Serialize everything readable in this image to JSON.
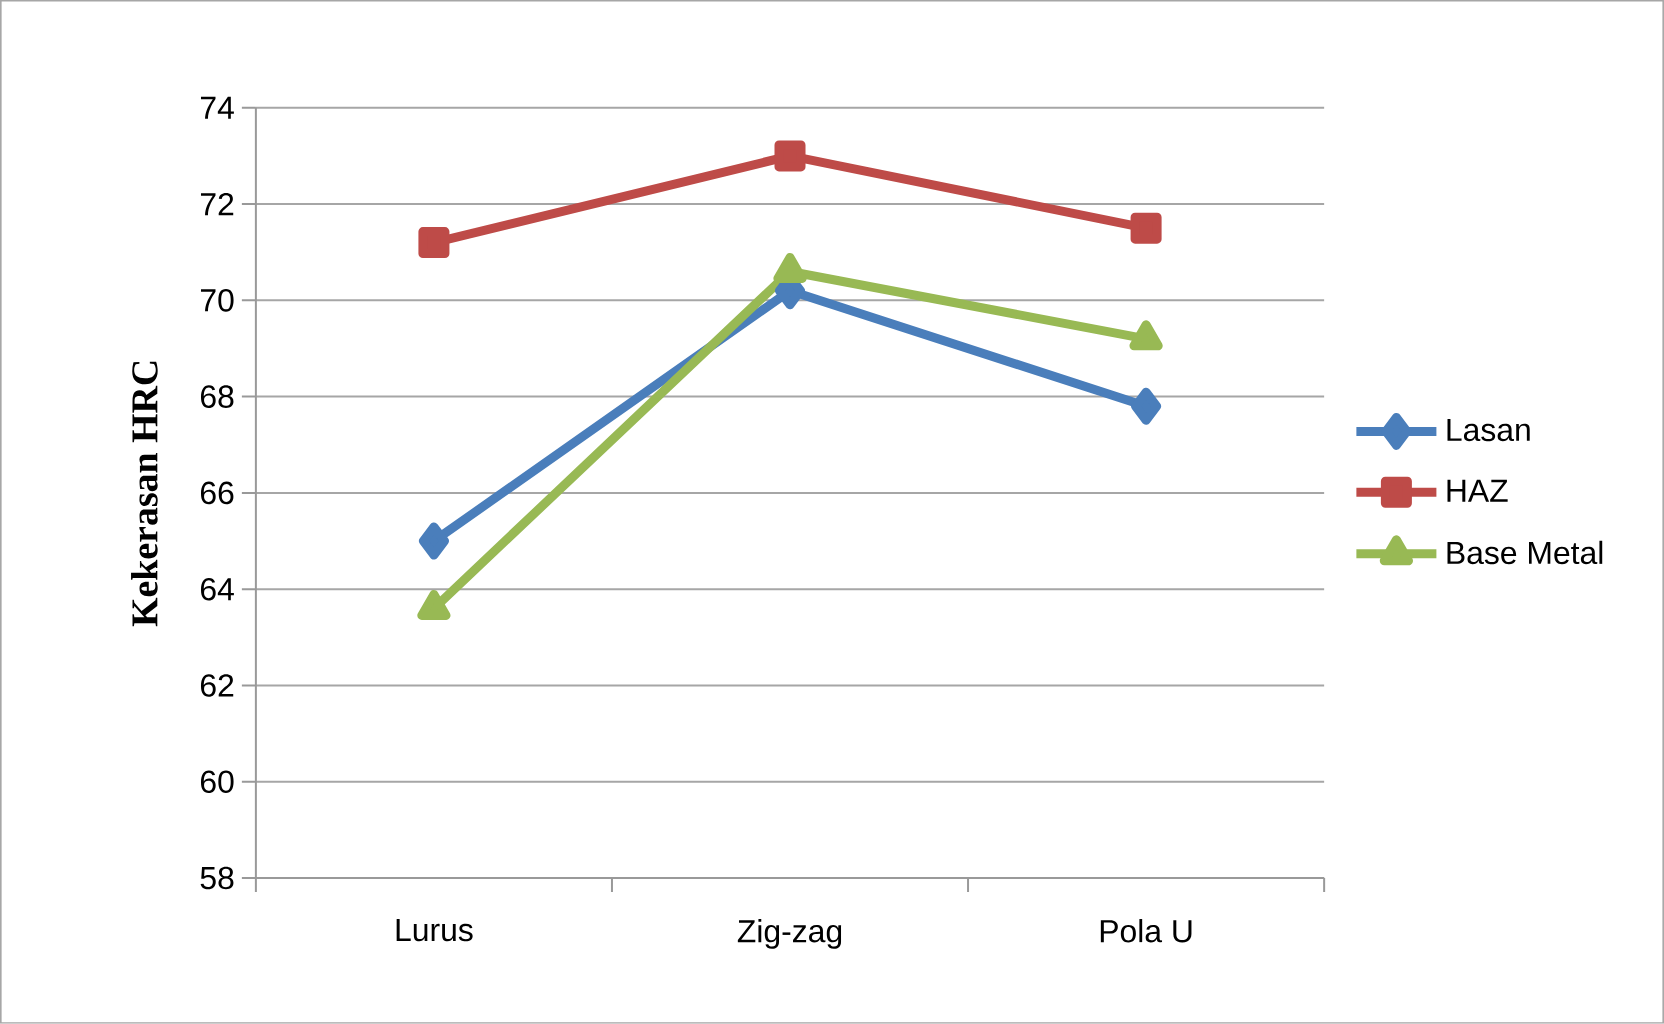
{
  "chart_data": {
    "type": "line",
    "ylabel": "Kekerasan HRC",
    "categories": [
      "Lurus",
      "Zig-zag",
      "Pola U"
    ],
    "series": [
      {
        "name": "Lasan",
        "color": "#4a7ebb",
        "values": [
          65.0,
          70.2,
          67.8
        ],
        "marker": "diamond"
      },
      {
        "name": "HAZ",
        "color": "#be4b48",
        "values": [
          71.2,
          73.0,
          71.5
        ],
        "marker": "square"
      },
      {
        "name": "Base Metal",
        "color": "#98b954",
        "values": [
          63.6,
          70.6,
          69.2
        ],
        "marker": "triangle"
      }
    ],
    "ylim": [
      58,
      74
    ],
    "yticks": [
      58,
      60,
      62,
      64,
      66,
      68,
      70,
      72,
      74
    ],
    "grid": "y",
    "legend": "right",
    "line_style": "solid"
  }
}
